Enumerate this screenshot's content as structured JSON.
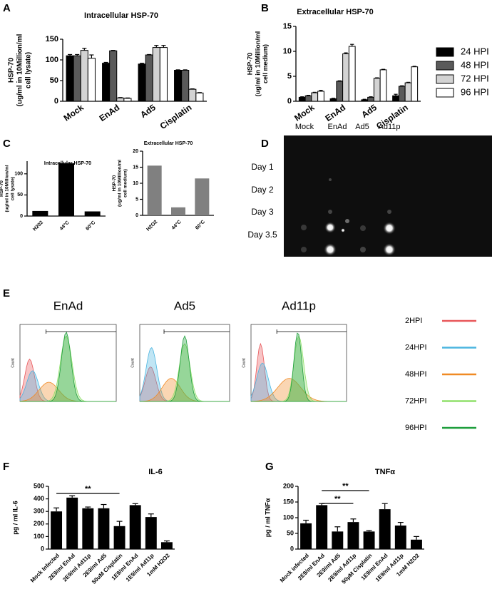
{
  "panel_labels": [
    "A",
    "B",
    "C",
    "D",
    "E",
    "F",
    "G"
  ],
  "chart_data": [
    {
      "type": "bar",
      "title": "Intracellular HSP-70",
      "ylabel": [
        "HSP-70",
        "(ug/ml in 10Million/ml",
        "cell lysate)"
      ],
      "categories": [
        "Mock",
        "EnAd",
        "Ad5",
        "Cisplatin"
      ],
      "series": [
        {
          "name": "24 HPI",
          "color": "#000000",
          "values": [
            110,
            92,
            90,
            75
          ],
          "errors": [
            3,
            2,
            2,
            1
          ]
        },
        {
          "name": "48 HPI",
          "color": "#5a5a5a",
          "values": [
            110,
            122,
            112,
            75
          ],
          "errors": [
            3,
            1,
            1,
            1
          ]
        },
        {
          "name": "72 HPI",
          "color": "#d3d3d3",
          "values": [
            123,
            8,
            130,
            29
          ],
          "errors": [
            5,
            1,
            5,
            1
          ]
        },
        {
          "name": "96 HPI",
          "color": "#ffffff",
          "values": [
            104,
            7,
            130,
            20
          ],
          "errors": [
            8,
            1,
            5,
            1
          ]
        }
      ],
      "ylim": [
        0,
        150
      ],
      "yticks": [
        0,
        50,
        100,
        150
      ]
    },
    {
      "type": "bar",
      "title": "Extracellular HSP-70",
      "ylabel": [
        "HSP-70",
        "(ug/ml in 10Million/ml",
        "cell medium)"
      ],
      "categories": [
        "Mock",
        "EnAd",
        "Ad5",
        "Cisplatin"
      ],
      "series": [
        {
          "color": "#000000",
          "values": [
            0.8,
            0.5,
            0.3,
            1.1
          ],
          "errors": [
            0.1,
            0.1,
            0.1,
            0.3
          ]
        },
        {
          "color": "#5a5a5a",
          "values": [
            1.1,
            4.0,
            0.8,
            3.0
          ],
          "errors": [
            0.1,
            0.1,
            0.1,
            0.1
          ]
        },
        {
          "color": "#d3d3d3",
          "values": [
            1.7,
            9.5,
            4.6,
            3.7
          ],
          "errors": [
            0.1,
            0.2,
            0.1,
            0.1
          ]
        },
        {
          "color": "#ffffff",
          "values": [
            2.0,
            11.0,
            6.3,
            6.9
          ],
          "errors": [
            0.2,
            0.4,
            0.1,
            0.1
          ]
        }
      ],
      "ylim": [
        0,
        15
      ],
      "yticks": [
        0,
        5,
        10,
        15
      ]
    },
    {
      "type": "bar",
      "title": "Intracellular HSP-70",
      "ylabel": [
        "HSP-70",
        "(ug/ml in 10Million/ml",
        "cell lysate)"
      ],
      "categories": [
        "H202",
        "44°C",
        "60°C"
      ],
      "values": [
        12,
        125,
        11
      ],
      "color": "#000000",
      "ylim": [
        0,
        130
      ],
      "yticks": [
        0,
        50,
        100
      ]
    },
    {
      "type": "bar",
      "title": "Extracellular HSP-70",
      "ylabel": [
        "HSP-70",
        "(ug/ml in 10Million/ml",
        "cell medium)"
      ],
      "categories": [
        "H2O2",
        "44°C",
        "60°C"
      ],
      "values": [
        15.5,
        2.5,
        11.5
      ],
      "color": "#808080",
      "ylim": [
        0,
        20
      ],
      "yticks": [
        0,
        5,
        10,
        15,
        20
      ]
    },
    {
      "type": "bar",
      "title": "IL-6",
      "ylabel": [
        "pg / ml IL-6"
      ],
      "categories": [
        "Mock Infected",
        "2E9/ml EnAd",
        "2E9/ml Ad11p",
        "2E9/ml Ad5",
        "50uM Cisplatin",
        "1E9/ml EnAd",
        "1E9/ml Ad11p",
        "1mM H2O2"
      ],
      "values": [
        300,
        410,
        325,
        325,
        183,
        350,
        255,
        55
      ],
      "errors": [
        28,
        15,
        10,
        30,
        38,
        12,
        25,
        10
      ],
      "color": "#000000",
      "ylim": [
        0,
        500
      ],
      "yticks": [
        0,
        100,
        200,
        300,
        400,
        500
      ],
      "annotations": [
        "**"
      ]
    },
    {
      "type": "bar",
      "title": "TNFα",
      "ylabel": [
        "pg / ml TNFα"
      ],
      "categories": [
        "Mock infected",
        "2E9/ml EnAd",
        "2E9/ml Ad5",
        "2E9/ml Ad11p",
        "50µM Cisplatin",
        "1E9/ml EnAd",
        "1E9/ml Ad11p",
        "1mM H2O2"
      ],
      "values": [
        82,
        140,
        56,
        86,
        56,
        127,
        75,
        30
      ],
      "errors": [
        10,
        5,
        15,
        10,
        3,
        18,
        10,
        10
      ],
      "color": "#000000",
      "ylim": [
        0,
        200
      ],
      "yticks": [
        0,
        50,
        100,
        150,
        200
      ],
      "annotations": [
        "**",
        "**"
      ]
    }
  ],
  "blot": {
    "columns": [
      "Mock",
      "EnAd",
      "Ad5",
      "Ad11p"
    ],
    "rows": [
      "Day 1",
      "Day 2",
      "Day 3",
      "Day 3.5"
    ]
  },
  "flow": {
    "titles": [
      "EnAd",
      "Ad5",
      "Ad11p"
    ],
    "ylabel": "Count",
    "legend": [
      {
        "name": "2HPI",
        "color": "#e8575a"
      },
      {
        "name": "24HPI",
        "color": "#4bb5e0"
      },
      {
        "name": "48HPI",
        "color": "#f08a24"
      },
      {
        "name": "72HPI",
        "color": "#8fe06a"
      },
      {
        "name": "96HPI",
        "color": "#1e9e3c"
      }
    ]
  }
}
